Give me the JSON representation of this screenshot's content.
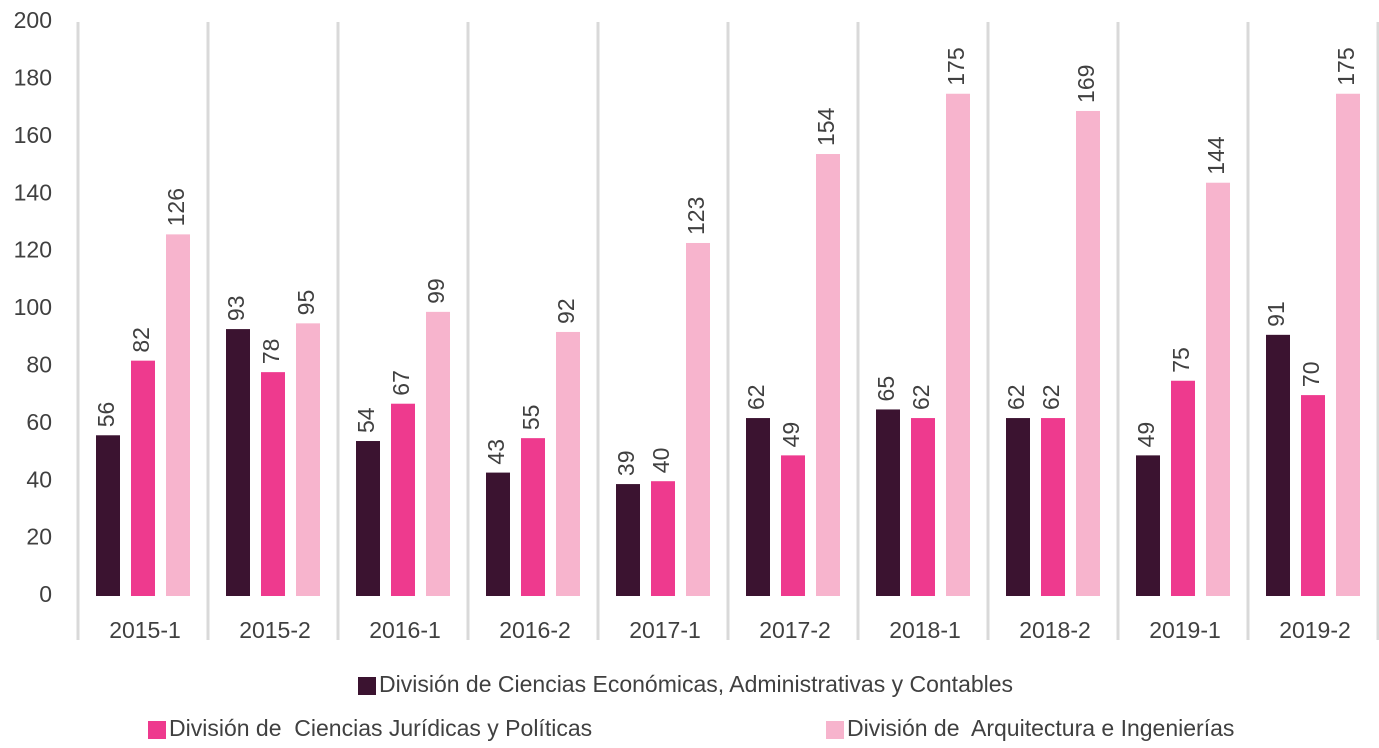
{
  "chart_data": {
    "type": "bar",
    "categories": [
      "2015-1",
      "2015-2",
      "2016-1",
      "2016-2",
      "2017-1",
      "2017-2",
      "2018-1",
      "2018-2",
      "2019-1",
      "2019-2"
    ],
    "series": [
      {
        "name": "División de Ciencias Económicas, Administrativas y Contables",
        "color": "#3b1330",
        "values": [
          56,
          93,
          54,
          43,
          39,
          62,
          65,
          62,
          49,
          91
        ]
      },
      {
        "name": "División de  Ciencias Jurídicas y Políticas",
        "color": "#ee3a8e",
        "values": [
          82,
          78,
          67,
          55,
          40,
          49,
          62,
          62,
          75,
          70
        ]
      },
      {
        "name": "División de  Arquitectura e Ingenierías",
        "color": "#f7b4cd",
        "values": [
          126,
          95,
          99,
          92,
          123,
          154,
          175,
          169,
          144,
          175
        ]
      }
    ],
    "ylim": [
      0,
      200
    ],
    "yticks": [
      0,
      20,
      40,
      60,
      80,
      100,
      120,
      140,
      160,
      180,
      200
    ],
    "legend": "bottom"
  }
}
